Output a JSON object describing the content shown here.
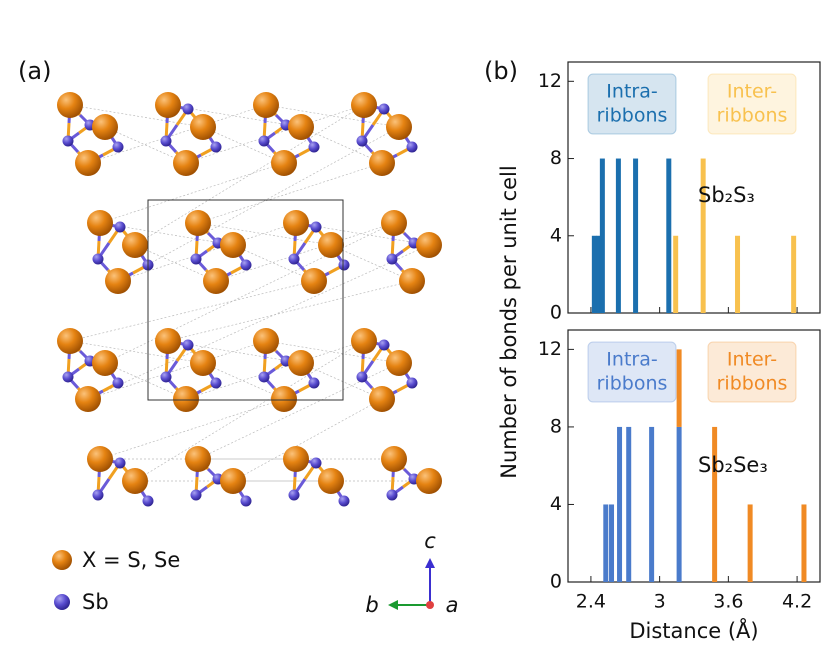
{
  "structure": {
    "panel_label": "(a)",
    "legend": [
      {
        "label": "X = S, Se",
        "color": "#e07d10"
      },
      {
        "label": "Sb",
        "color": "#5446c8"
      }
    ],
    "axes": {
      "c": "c",
      "b": "b",
      "a": "a"
    }
  },
  "figure": {
    "panel_label": "(b)",
    "ylabel": "Number of bonds per unit cell",
    "xlabel": "Distance (Å)"
  },
  "chart_data": [
    {
      "type": "bar",
      "compound": "Sb₂S₃",
      "xlim": [
        2.2,
        4.4
      ],
      "xticks": [
        2.4,
        3.0,
        3.6,
        4.2
      ],
      "show_xtick_labels": false,
      "ylim": [
        0,
        13
      ],
      "yticks": [
        0,
        4,
        8,
        12
      ],
      "series": [
        {
          "label_lines": [
            "Intra-",
            "ribbons"
          ],
          "color": "#1b6fae",
          "x": [
            2.43,
            2.47,
            2.5,
            2.64,
            2.79,
            3.08
          ],
          "values": [
            4,
            4,
            8,
            8,
            8,
            8
          ]
        },
        {
          "label_lines": [
            "Inter-",
            "ribbons"
          ],
          "color": "#f8c14e",
          "x": [
            3.14,
            3.38,
            3.68,
            4.17
          ],
          "values": [
            4,
            8,
            4,
            4
          ]
        }
      ]
    },
    {
      "type": "bar",
      "compound": "Sb₂Se₃",
      "xlim": [
        2.2,
        4.4
      ],
      "xticks": [
        2.4,
        3.0,
        3.6,
        4.2
      ],
      "show_xtick_labels": true,
      "ylim": [
        0,
        13
      ],
      "yticks": [
        0,
        4,
        8,
        12
      ],
      "series": [
        {
          "label_lines": [
            "Intra-",
            "ribbons"
          ],
          "color": "#4a7bcb",
          "x": [
            2.53,
            2.58,
            2.65,
            2.73,
            2.93,
            3.17
          ],
          "values": [
            4,
            4,
            8,
            8,
            8,
            8
          ]
        },
        {
          "label_lines": [
            "Inter-",
            "ribbons"
          ],
          "color": "#f08a24",
          "x": [
            3.17,
            3.48,
            3.79,
            4.26
          ],
          "values": [
            4,
            8,
            4,
            4
          ]
        }
      ]
    }
  ]
}
